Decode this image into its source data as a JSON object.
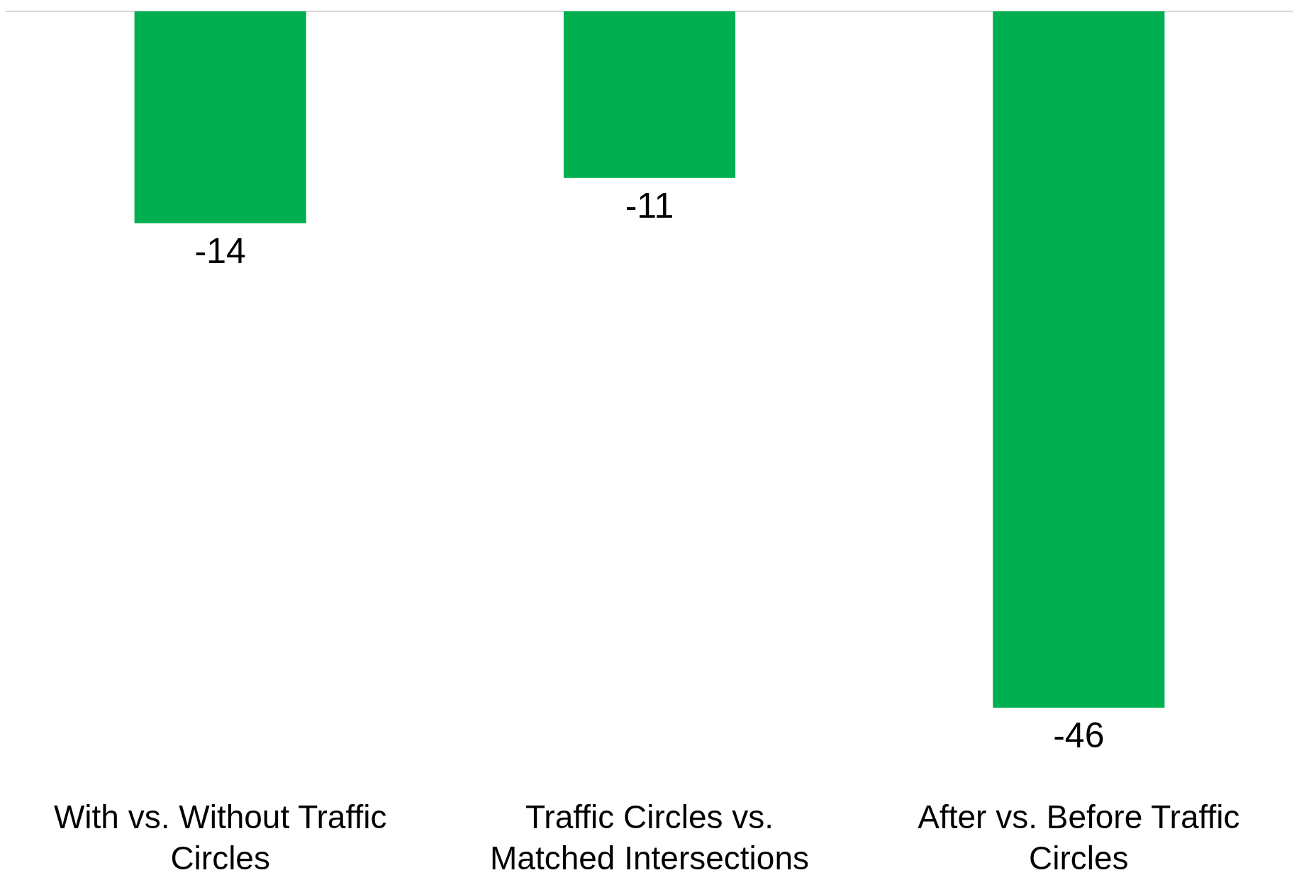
{
  "chart_data": {
    "type": "bar",
    "categories": [
      "With vs. Without Traffic Circles",
      "Traffic Circles vs. Matched Intersections",
      "After vs. Before Traffic Circles"
    ],
    "values": [
      -14,
      -11,
      -46
    ],
    "color": "#00b050",
    "data_labels": true
  }
}
